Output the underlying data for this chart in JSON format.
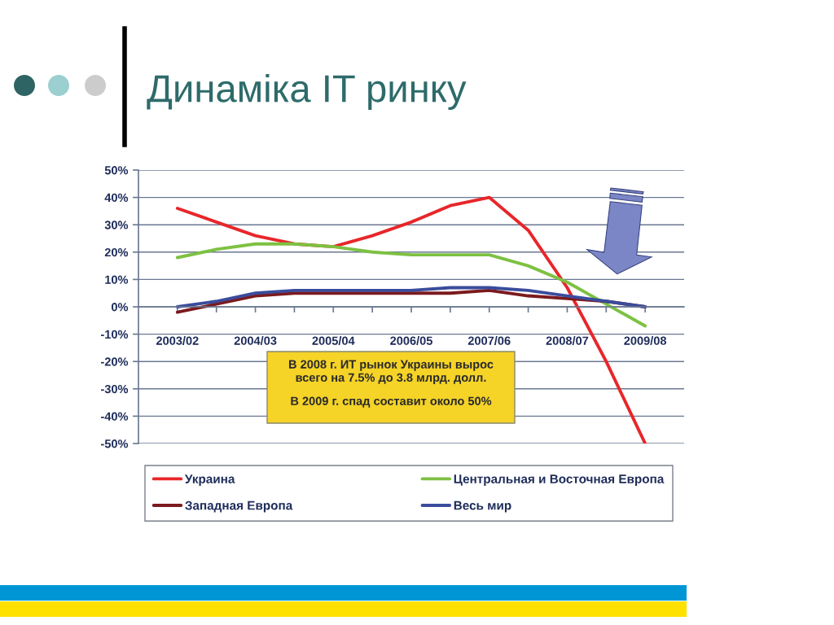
{
  "chart_data": {
    "type": "line",
    "title": "Динаміка IT ринку",
    "categories": [
      "2003/02",
      null,
      "2004/03",
      null,
      "2005/04",
      null,
      "2006/05",
      null,
      "2007/06",
      null,
      "2008/07",
      null,
      "2009/08"
    ],
    "series": [
      {
        "name": "Украина",
        "color": "#e8262a",
        "values": [
          36,
          31,
          26,
          23,
          22,
          26,
          31,
          37,
          40,
          28,
          7,
          -20,
          -50
        ]
      },
      {
        "name": "Центральная и Восточная Европа",
        "color": "#7dc142",
        "values": [
          18,
          21,
          23,
          23,
          22,
          20,
          19,
          19,
          19,
          15,
          9,
          1,
          -7
        ]
      },
      {
        "name": "Западная Европа",
        "color": "#7b1a1e",
        "values": [
          -2,
          1,
          4,
          5,
          5,
          5,
          5,
          5,
          6,
          4,
          3,
          2,
          0
        ]
      },
      {
        "name": "Весь мир",
        "color": "#3a4c9c",
        "values": [
          0,
          2,
          5,
          6,
          6,
          6,
          6,
          7,
          7,
          6,
          4,
          2,
          0
        ]
      }
    ],
    "ylim": [
      -50,
      50
    ],
    "yticks": [
      {
        "value": 50,
        "label": "50%"
      },
      {
        "value": 40,
        "label": "40%"
      },
      {
        "value": 30,
        "label": "30%"
      },
      {
        "value": 20,
        "label": "20%"
      },
      {
        "value": 10,
        "label": "10%"
      },
      {
        "value": 0,
        "label": "0%"
      },
      {
        "value": -10,
        "label": "-10%"
      },
      {
        "value": -20,
        "label": "-20%"
      },
      {
        "value": -30,
        "label": "-30%"
      },
      {
        "value": -40,
        "label": "-40%"
      },
      {
        "value": -50,
        "label": "-50%"
      }
    ],
    "grid": "y",
    "legend": "bottom",
    "line_style": "solid",
    "annotations": [
      "В 2008 г. ИТ рынок Украины вырос\nвсего на 7.5% до 3.8 млрд. долл.",
      "В 2009 г. спад составит около 50%"
    ]
  }
}
